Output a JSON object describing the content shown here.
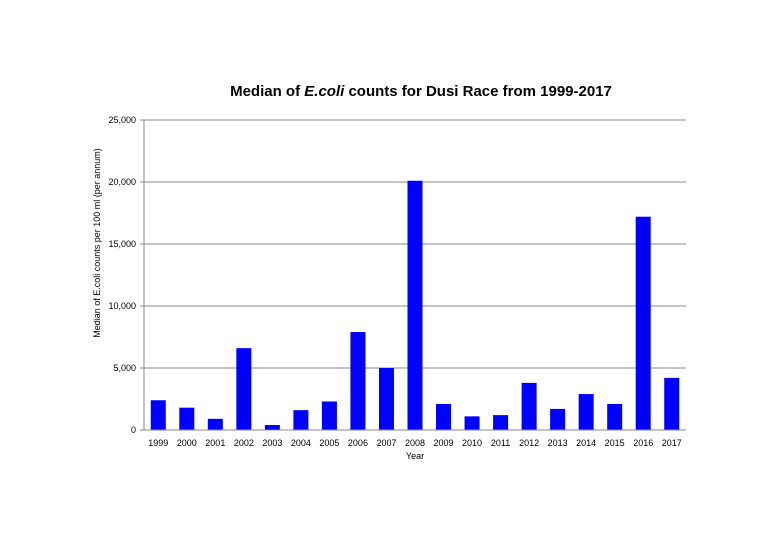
{
  "chart_data": {
    "type": "bar",
    "title_parts": [
      "Median of ",
      "E.coli",
      " counts for Dusi Race from 1999-2017"
    ],
    "xlabel": "Year",
    "ylabel": "Median of E.coli counts per 100 ml (per annum)",
    "categories": [
      "1999",
      "2000",
      "2001",
      "2002",
      "2003",
      "2004",
      "2005",
      "2006",
      "2007",
      "2008",
      "2009",
      "2010",
      "2011",
      "2012",
      "2013",
      "2014",
      "2015",
      "2016",
      "2017"
    ],
    "values": [
      2400,
      1800,
      900,
      6600,
      400,
      1600,
      2300,
      7900,
      5000,
      20100,
      2100,
      1100,
      1200,
      3800,
      1700,
      2900,
      2100,
      17200,
      4200
    ],
    "yticks": [
      0,
      5000,
      10000,
      15000,
      20000,
      25000
    ],
    "ytick_labels": [
      "0",
      "5,000",
      "10,000",
      "15,000",
      "20,000",
      "25,000"
    ],
    "ylim": [
      0,
      25000
    ],
    "grid": true,
    "bar_color": "#0000ff"
  }
}
